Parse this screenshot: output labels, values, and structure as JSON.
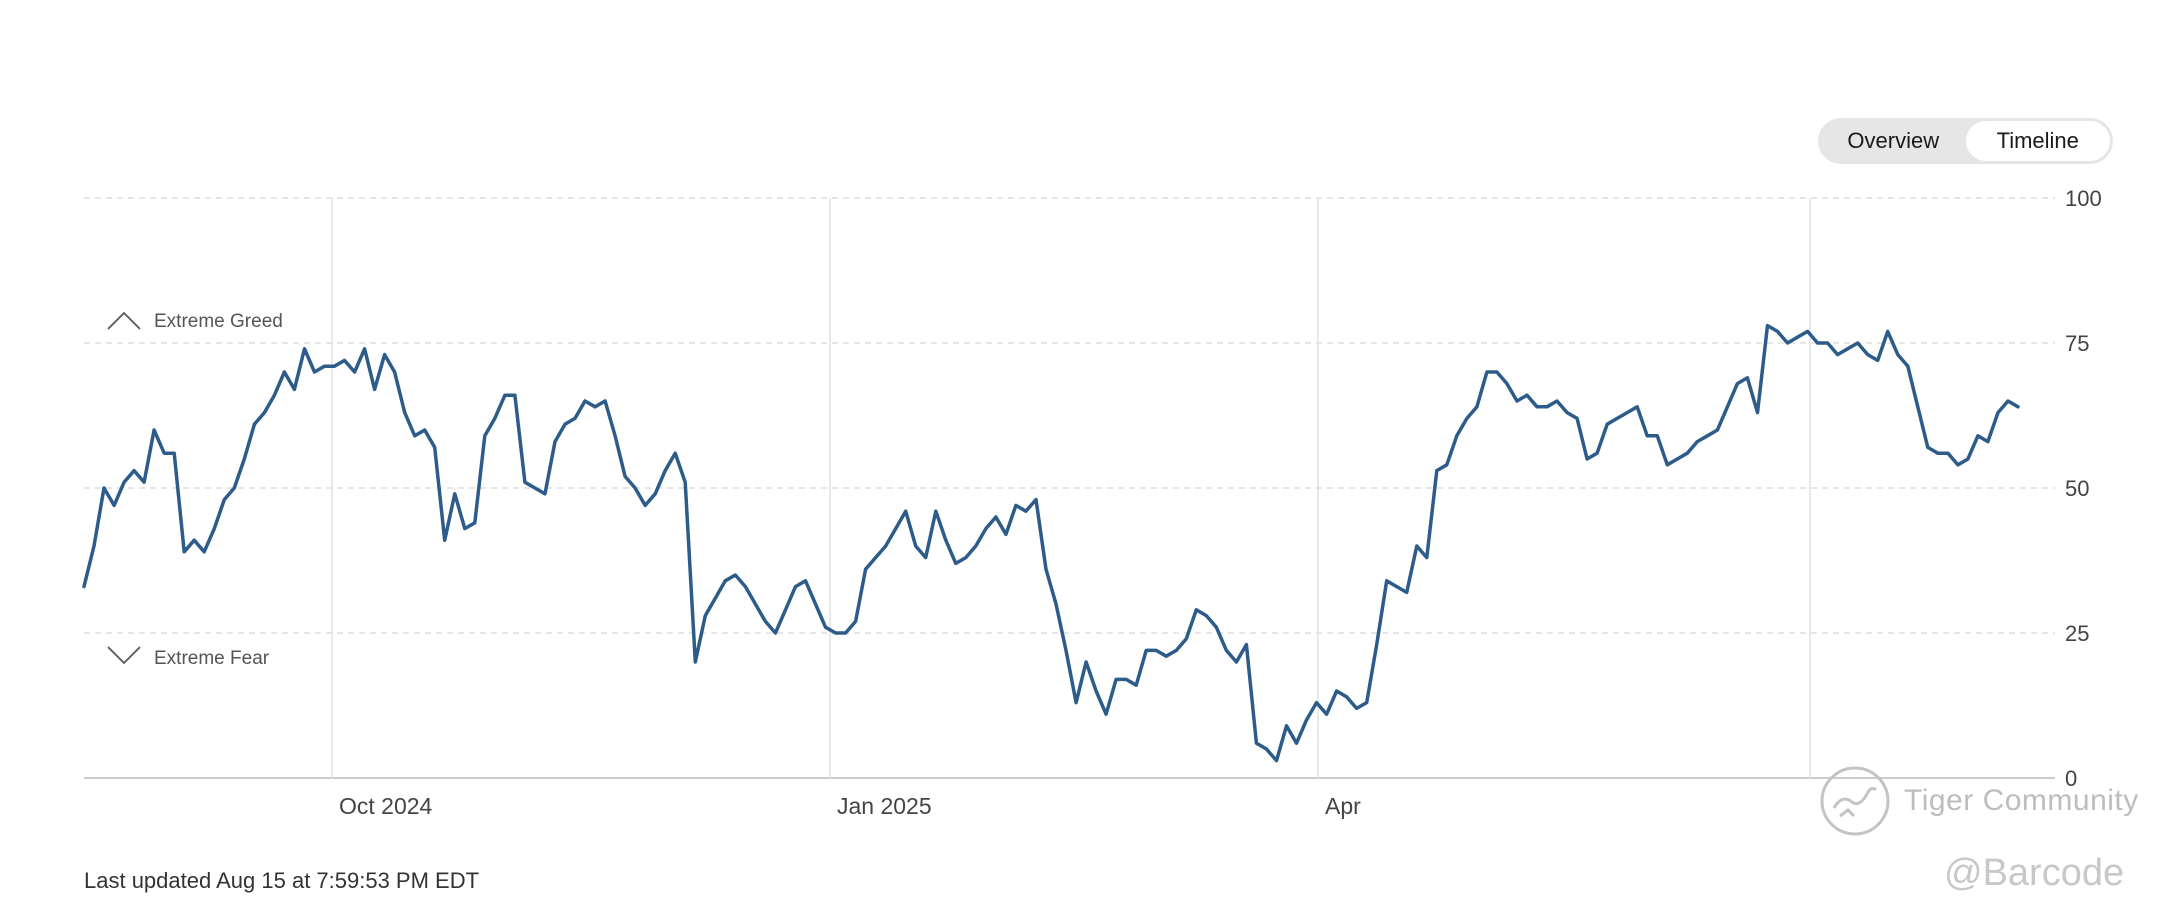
{
  "toggle": {
    "options": [
      "Overview",
      "Timeline"
    ],
    "active": "Timeline"
  },
  "chart_data": {
    "type": "line",
    "y_ticks": [
      "100",
      "75",
      "50",
      "25",
      "0"
    ],
    "ylim": [
      0,
      100
    ],
    "x_ticks": [
      "Oct 2024",
      "Jan 2025",
      "Apr"
    ],
    "zone_labels": {
      "greed": "Extreme Greed",
      "fear": "Extreme Fear"
    },
    "line_color": "#2d5c8a",
    "grid": true,
    "series": [
      {
        "values": [
          33,
          40,
          50,
          47,
          51,
          53,
          51,
          60,
          56,
          56,
          39,
          41,
          39,
          43,
          48,
          50,
          55,
          61,
          63,
          66,
          70,
          67,
          74,
          70,
          71,
          71,
          72,
          70,
          74,
          67,
          73,
          70,
          63,
          59,
          60,
          57,
          41,
          49,
          43,
          44,
          59,
          62,
          66,
          66,
          51,
          50,
          49,
          58,
          61,
          62,
          65,
          64,
          65,
          59,
          52,
          50,
          47,
          49,
          53,
          56,
          51,
          20,
          28,
          31,
          34,
          35,
          33,
          30,
          27,
          25,
          29,
          33,
          34,
          30,
          26,
          25,
          25,
          27,
          36,
          38,
          40,
          43,
          46,
          40,
          38,
          46,
          41,
          37,
          38,
          40,
          43,
          45,
          42,
          47,
          46,
          48,
          36,
          30,
          22,
          13,
          20,
          15,
          11,
          17,
          17,
          16,
          22,
          22,
          21,
          22,
          24,
          29,
          28,
          26,
          22,
          20,
          23,
          6,
          5,
          3,
          9,
          6,
          10,
          13,
          11,
          15,
          14,
          12,
          13,
          23,
          34,
          33,
          32,
          40,
          38,
          53,
          54,
          59,
          62,
          64,
          70,
          70,
          68,
          65,
          66,
          64,
          64,
          65,
          63,
          62,
          55,
          56,
          61,
          62,
          63,
          64,
          59,
          59,
          54,
          55,
          56,
          58,
          59,
          60,
          64,
          68,
          69,
          63,
          78,
          77,
          75,
          76,
          77,
          75,
          75,
          73,
          74,
          75,
          73,
          72,
          77,
          73,
          71,
          64,
          57,
          56,
          56,
          54,
          55,
          59,
          58,
          63,
          65,
          64
        ]
      }
    ]
  },
  "footer": {
    "last_updated": "Last updated Aug 15 at 7:59:53 PM EDT"
  },
  "watermark": {
    "community": "Tiger Community",
    "handle": "@Barcode"
  }
}
